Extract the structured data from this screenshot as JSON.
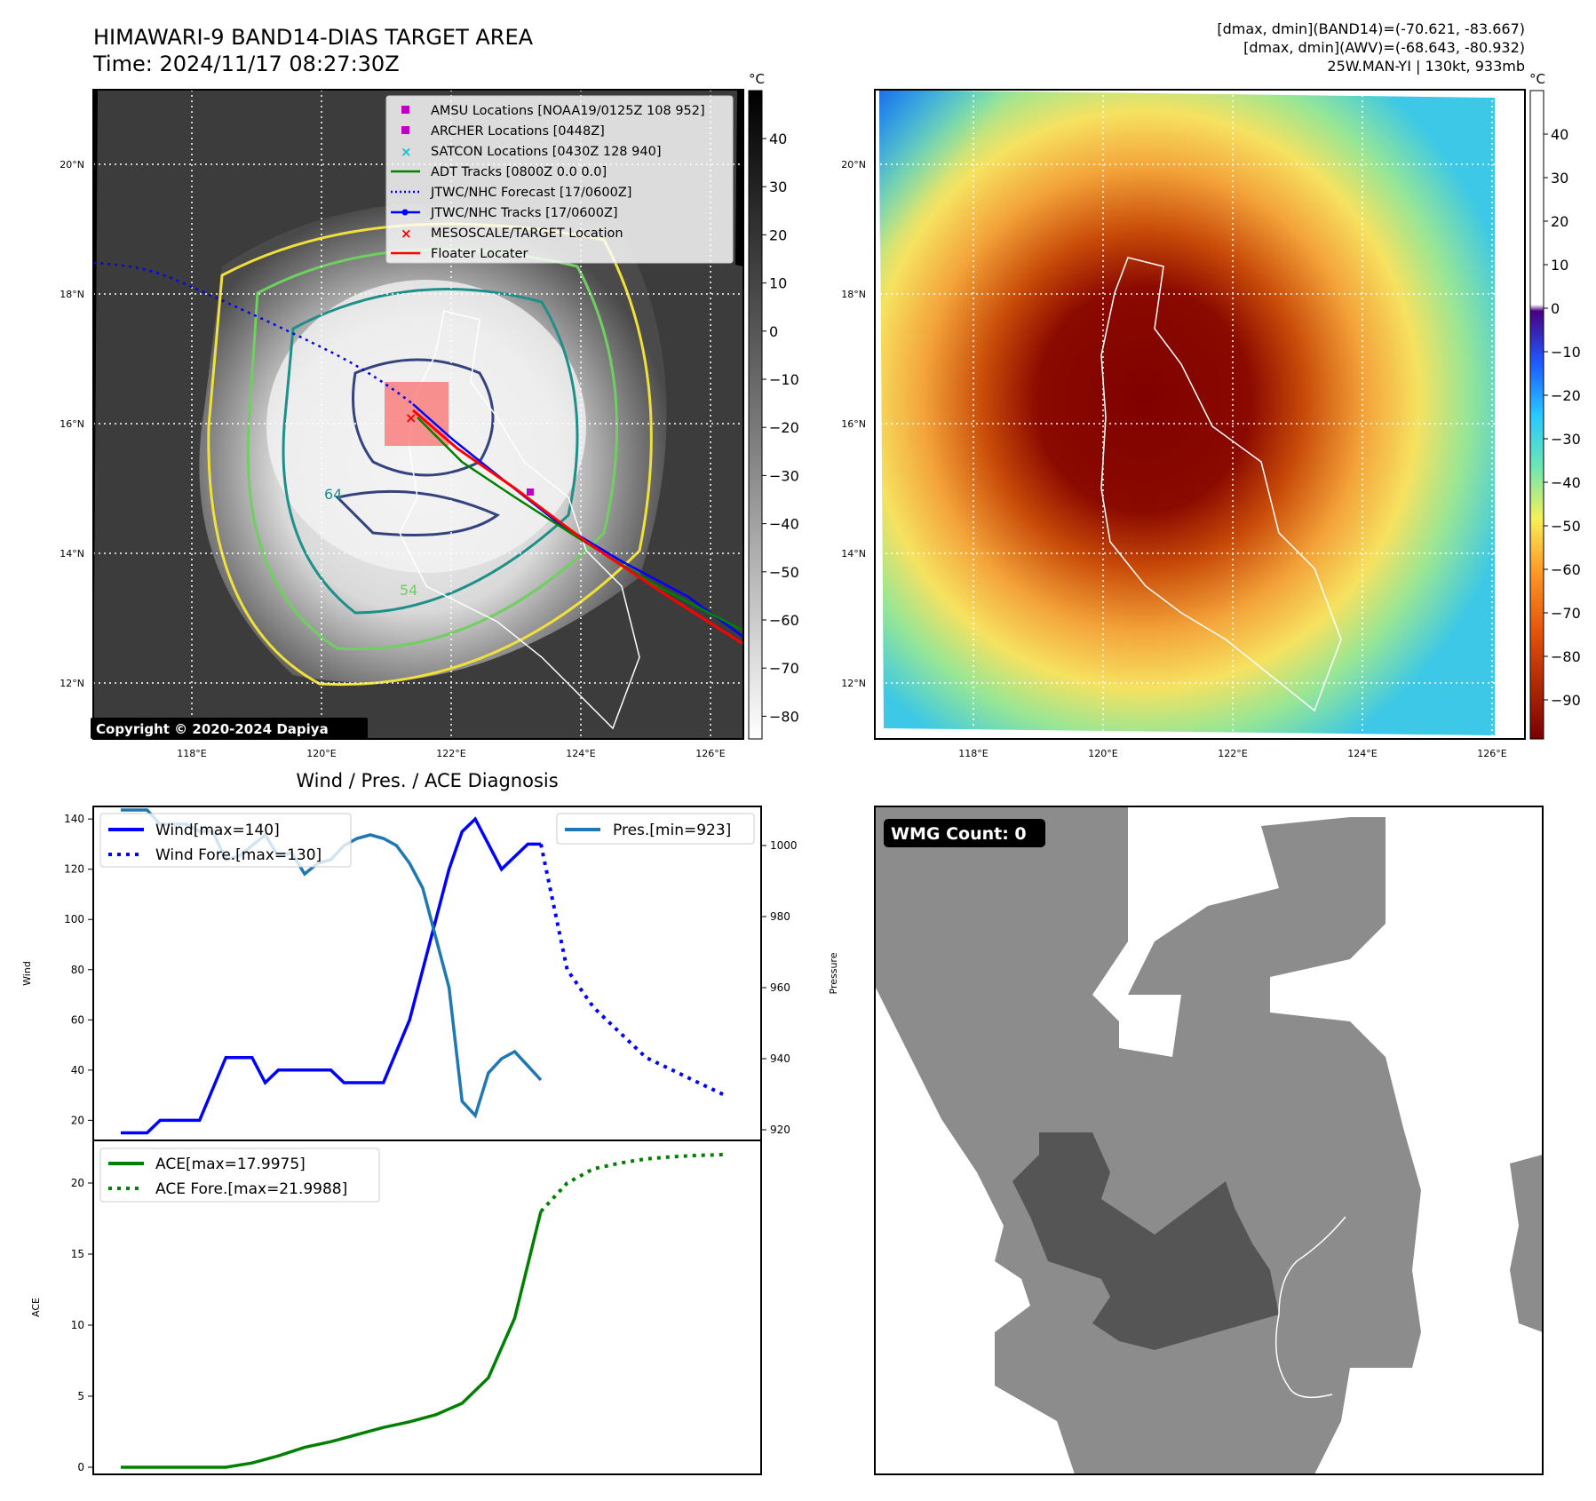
{
  "header": {
    "title": "HIMAWARI-9 BAND14-DIAS TARGET AREA",
    "time": "Time: 2024/11/17 08:27:30Z",
    "info_line1": "[dmax, dmin](BAND14)=(-70.621, -83.667)",
    "info_line2": "[dmax, dmin](AWV)=(-68.643, -80.932)",
    "info_line3": "25W.MAN-YI | 130kt, 933mb"
  },
  "map_axes": {
    "lat_labels": [
      "20°N",
      "18°N",
      "16°N",
      "14°N",
      "12°N"
    ],
    "lon_labels": [
      "118°E",
      "120°E",
      "122°E",
      "124°E",
      "126°E"
    ]
  },
  "colorbar_ir": {
    "unit": "°C",
    "ticks": [
      "40",
      "30",
      "20",
      "10",
      "0",
      "−10",
      "−20",
      "−30",
      "−40",
      "−50",
      "−60",
      "−70",
      "−80"
    ]
  },
  "colorbar_color": {
    "unit": "°C",
    "ticks": [
      "40",
      "30",
      "20",
      "10",
      "0",
      "−10",
      "−20",
      "−30",
      "−40",
      "−50",
      "−60",
      "−70",
      "−80",
      "−90"
    ]
  },
  "legend_map": [
    {
      "label": "AMSU Locations [NOAA19/0125Z 108 952]",
      "color": "#c000c0",
      "marker": "square"
    },
    {
      "label": "ARCHER Locations [0448Z]",
      "color": "#c000c0",
      "marker": "square"
    },
    {
      "label": "SATCON Locations [0430Z 128 940]",
      "color": "#17becf",
      "marker": "x"
    },
    {
      "label": "ADT Tracks [0800Z 0.0 0.0]",
      "color": "#008000",
      "marker": "line"
    },
    {
      "label": "JTWC/NHC Forecast [17/0600Z]",
      "color": "#0000ff",
      "marker": "dotted"
    },
    {
      "label": "JTWC/NHC Tracks [17/0600Z]",
      "color": "#0000ff",
      "marker": "line-dot"
    },
    {
      "label": "MESOSCALE/TARGET Location",
      "color": "#ff0000",
      "marker": "x"
    },
    {
      "label": "Floater Locater",
      "color": "#ff0000",
      "marker": "line"
    }
  ],
  "contour_labels": [
    "64",
    "54"
  ],
  "copyright": "Copyright © 2020-2024 Dapiya",
  "wmg": {
    "label": "WMG Count: 0"
  },
  "chart_data": [
    {
      "type": "line",
      "title": "Wind / Pres. / ACE Diagnosis",
      "ylabel": "Wind",
      "ylabel_right": "Pressure",
      "ylim": [
        12,
        145
      ],
      "ylim_right": [
        917,
        1011
      ],
      "yticks": [
        20,
        40,
        60,
        80,
        100,
        120,
        140
      ],
      "yticks_right": [
        920,
        940,
        960,
        980,
        1000
      ],
      "series": [
        {
          "name": "Wind[max=140]",
          "color": "#0000ff",
          "style": "solid",
          "x": [
            0,
            1,
            1.5,
            2.5,
            3,
            4,
            5,
            5.5,
            6,
            6.5,
            7,
            8,
            8.5,
            9,
            10,
            11,
            12,
            12.5,
            13,
            13.5,
            14,
            14.5,
            15,
            15.5,
            16
          ],
          "values": [
            15,
            15,
            20,
            20,
            20,
            45,
            45,
            35,
            40,
            40,
            40,
            40,
            35,
            35,
            35,
            60,
            100,
            120,
            135,
            140,
            130,
            120,
            125,
            130,
            130
          ]
        },
        {
          "name": "Wind Fore.[max=130]",
          "color": "#0000ff",
          "style": "dotted",
          "x": [
            16,
            17,
            18,
            19,
            20,
            21,
            22,
            23
          ],
          "values": [
            130,
            80,
            65,
            55,
            45,
            40,
            35,
            30
          ]
        },
        {
          "name": "Pres.[min=923]",
          "color": "#1f77b4",
          "style": "solid",
          "axis": "right",
          "x": [
            0,
            1,
            1.5,
            2.5,
            3,
            3.5,
            4,
            4.5,
            5,
            5.5,
            6,
            6.5,
            7,
            7.5,
            8,
            8.5,
            9,
            9.5,
            10,
            10.5,
            11,
            11.5,
            12,
            12.5,
            13,
            13.5,
            14,
            14.5,
            15,
            15.5,
            16
          ],
          "values": [
            1010,
            1010,
            1006,
            1006,
            1004,
            1004,
            996,
            997,
            1000,
            1003,
            997,
            998,
            992,
            995,
            996,
            1000,
            1002,
            1003,
            1002,
            1000,
            995,
            988,
            974,
            960,
            928,
            924,
            936,
            940,
            942,
            938,
            934
          ]
        }
      ]
    },
    {
      "type": "line",
      "ylabel": "ACE",
      "ylim": [
        -0.5,
        23
      ],
      "yticks": [
        0,
        5,
        10,
        15,
        20
      ],
      "series": [
        {
          "name": "ACE[max=17.9975]",
          "color": "#008000",
          "style": "solid",
          "x": [
            0,
            1,
            2,
            3,
            4,
            5,
            6,
            7,
            8,
            9,
            10,
            11,
            12,
            13,
            14,
            15,
            16
          ],
          "values": [
            0,
            0,
            0,
            0,
            0,
            0.3,
            0.8,
            1.4,
            1.8,
            2.3,
            2.8,
            3.2,
            3.7,
            4.5,
            6.3,
            10.5,
            18
          ]
        },
        {
          "name": "ACE Fore.[max=21.9988]",
          "color": "#008000",
          "style": "dotted",
          "x": [
            16,
            17,
            18,
            19,
            20,
            21,
            22,
            23
          ],
          "values": [
            18,
            20,
            21,
            21.4,
            21.7,
            21.85,
            21.95,
            22
          ]
        }
      ]
    }
  ]
}
